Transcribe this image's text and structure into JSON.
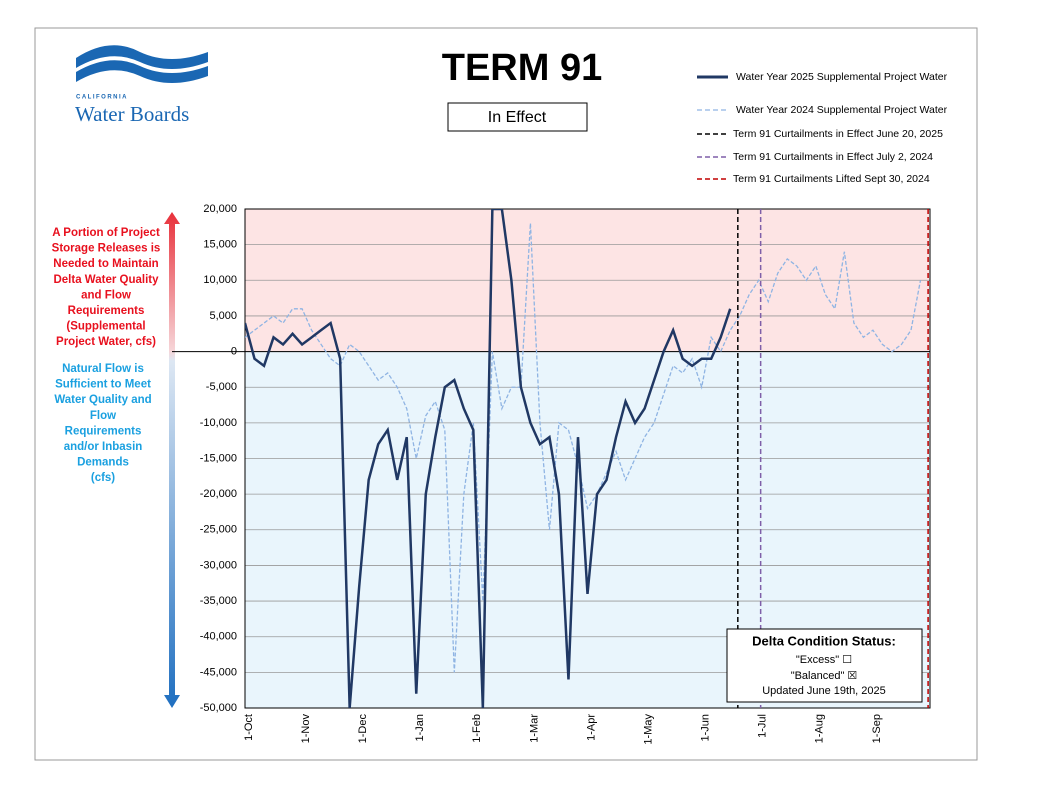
{
  "chart_data": {
    "type": "line",
    "title": "TERM 91",
    "status_badge": "In Effect",
    "logo": {
      "top": "CALIFORNIA",
      "name": "Water Boards"
    },
    "upper_note": [
      "A Portion of Project",
      "Storage Releases is",
      "Needed to Maintain",
      "Delta Water Quality",
      "and Flow",
      "Requirements",
      "(Supplemental",
      "Project Water, cfs)"
    ],
    "lower_note": [
      "Natural Flow is",
      "Sufficient to Meet",
      "Water Quality and",
      "Flow",
      "Requirements",
      "and/or Inbasin",
      "Demands",
      "(cfs)"
    ],
    "categories": [
      "1-Oct",
      null,
      null,
      null,
      null,
      null,
      "1-Nov",
      null,
      null,
      null,
      null,
      null,
      "1-Dec",
      null,
      null,
      null,
      null,
      null,
      "1-Jan",
      null,
      null,
      null,
      null,
      null,
      "1-Feb",
      null,
      null,
      null,
      null,
      null,
      "1-Mar",
      null,
      null,
      null,
      null,
      null,
      "1-Apr",
      null,
      null,
      null,
      null,
      null,
      "1-May",
      null,
      null,
      null,
      null,
      null,
      "1-Jun",
      null,
      null,
      null,
      null,
      null,
      "1-Jul",
      null,
      null,
      null,
      null,
      null,
      "1-Aug",
      null,
      null,
      null,
      null,
      null,
      "1-Sep",
      null,
      null,
      null,
      null,
      null
    ],
    "series": [
      {
        "name": "Water Year 2025 Supplemental Project Water",
        "color": "#203864",
        "dashed": false,
        "values": [
          4000,
          -1000,
          -2000,
          2000,
          1000,
          2500,
          1000,
          2000,
          3000,
          4000,
          -1000,
          -50000,
          -33000,
          -18000,
          -13000,
          -11000,
          -18000,
          -12000,
          -48000,
          -20000,
          -12000,
          -5000,
          -4000,
          -8000,
          -11000,
          -50000,
          20000,
          20000,
          10000,
          -5000,
          -10000,
          -13000,
          -12000,
          -20000,
          -46000,
          -12000,
          -34000,
          -20000,
          -18000,
          -12000,
          -7000,
          -10000,
          -8000,
          -4000,
          0,
          3000,
          -1000,
          -2000,
          -1000,
          -1000,
          2000,
          6000,
          null,
          null,
          null,
          null,
          null,
          null,
          null,
          null,
          null,
          null,
          null,
          null,
          null,
          null,
          null,
          null,
          null,
          null,
          null,
          null
        ]
      },
      {
        "name": "Water Year 2024 Supplemental Project Water",
        "color": "#8fb4e3",
        "dashed": true,
        "values": [
          2000,
          3000,
          4000,
          5000,
          4000,
          6000,
          6000,
          3000,
          1000,
          -1000,
          -2000,
          1000,
          0,
          -2000,
          -4000,
          -3000,
          -5000,
          -8000,
          -15000,
          -9000,
          -7000,
          -11000,
          -45000,
          -20000,
          -10000,
          -35000,
          0,
          -8000,
          -5000,
          -5000,
          18000,
          -10000,
          -25000,
          -10000,
          -11000,
          -16000,
          -22000,
          -20000,
          -17000,
          -14000,
          -18000,
          -15000,
          -12000,
          -10000,
          -6000,
          -2000,
          -3000,
          -1000,
          -5000,
          2000,
          0,
          3000,
          5000,
          8000,
          10000,
          7000,
          11000,
          13000,
          12000,
          10000,
          12000,
          8000,
          6000,
          14000,
          4000,
          2000,
          3000,
          1000,
          0,
          1000,
          3000,
          10000
        ]
      }
    ],
    "vlines": [
      {
        "name": "Term 91 Curtailments in Effect June 20, 2025",
        "color": "#000000",
        "at": 51.8
      },
      {
        "name": "Term 91 Curtailments in Effect July 2, 2024",
        "color": "#7f5fa8",
        "at": 54.2
      },
      {
        "name": "Term 91 Curtailments Lifted Sept 30, 2024",
        "color": "#c00000",
        "at": 71.8
      }
    ],
    "ylim": [
      -50000,
      20000
    ],
    "yticks": [
      {
        "value": -50000,
        "label": "-50,000"
      },
      {
        "value": -45000,
        "label": "-45,000"
      },
      {
        "value": -40000,
        "label": "-40,000"
      },
      {
        "value": -35000,
        "label": "-35,000"
      },
      {
        "value": -30000,
        "label": "-30,000"
      },
      {
        "value": -25000,
        "label": "-25,000"
      },
      {
        "value": -20000,
        "label": "-20,000"
      },
      {
        "value": -15000,
        "label": "-15,000"
      },
      {
        "value": -10000,
        "label": "-10,000"
      },
      {
        "value": -5000,
        "label": "-5,000"
      },
      0,
      {
        "value": 5000,
        "label": "5,000"
      },
      {
        "value": 10000,
        "label": "10,000"
      },
      {
        "value": 15000,
        "label": "15,000"
      },
      {
        "value": 20000,
        "label": "20,000"
      }
    ],
    "grid": true,
    "status": {
      "title": "Delta Condition Status:",
      "excess": "\"Excess\" ☐",
      "balanced": "\"Balanced\" ☒",
      "updated": "Updated June 19th, 2025"
    }
  }
}
